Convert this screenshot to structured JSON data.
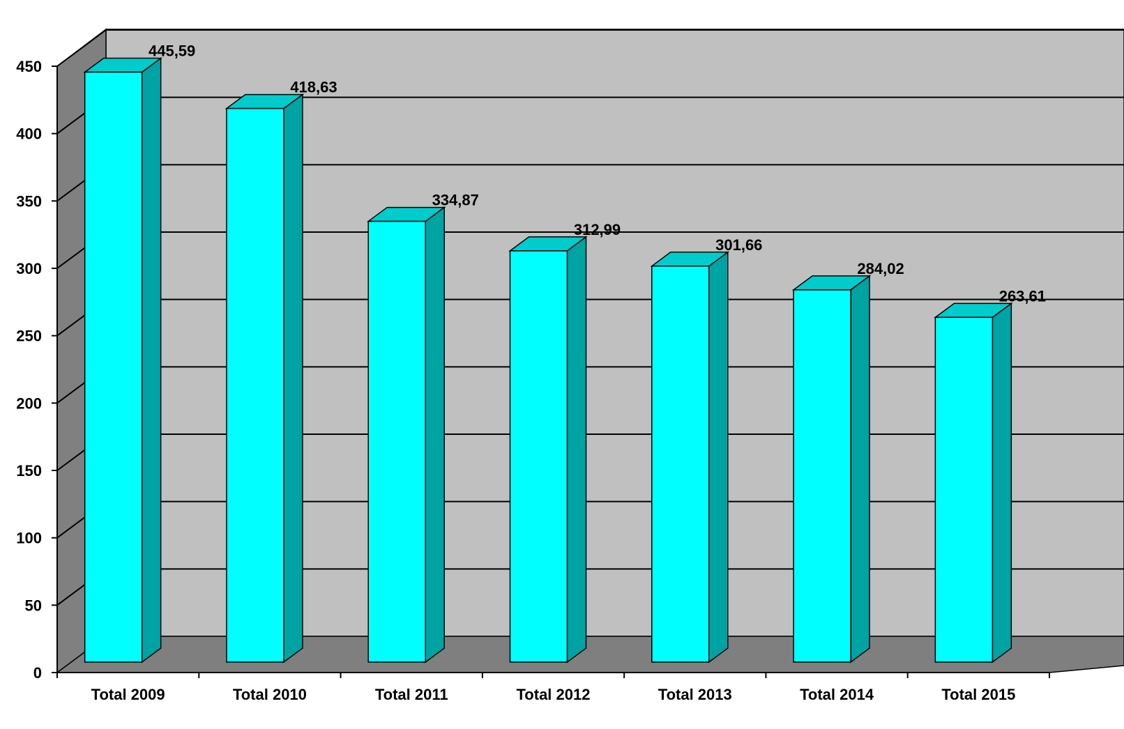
{
  "chart_data": {
    "type": "bar",
    "style": "3d-column",
    "categories": [
      "Total 2009",
      "Total 2010",
      "Total 2011",
      "Total 2012",
      "Total 2013",
      "Total 2014",
      "Total 2015"
    ],
    "series": [
      {
        "values": [
          445.59,
          418.63,
          334.87,
          312.99,
          301.66,
          284.02,
          263.61
        ]
      }
    ],
    "data_labels": [
      "445,59",
      "418,63",
      "334,87",
      "312,99",
      "301,66",
      "284,02",
      "263,61"
    ],
    "y_ticks": [
      0,
      50,
      100,
      150,
      200,
      250,
      300,
      350,
      400,
      450
    ],
    "ylim": [
      0,
      450
    ],
    "grid": true,
    "legend": "none",
    "title": "",
    "xlabel": "",
    "ylabel": "",
    "colors": {
      "bar_front": "#00ffff",
      "bar_side": "#00a3a3",
      "bar_top": "#00cccc",
      "back_wall": "#c0c0c0",
      "side_wall": "#808080",
      "floor": "#7f7f7f",
      "gridline": "#000000"
    }
  }
}
